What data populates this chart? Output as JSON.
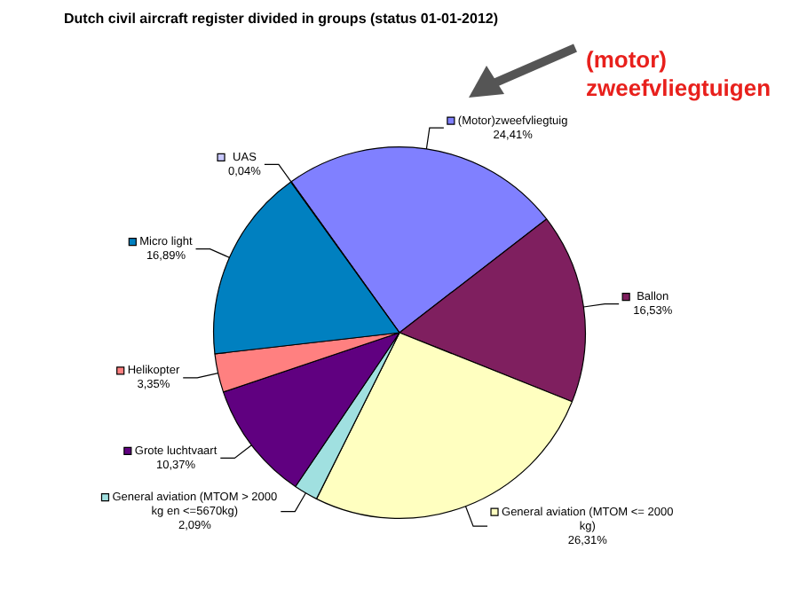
{
  "chart_data": {
    "type": "pie",
    "title": "Dutch civil aircraft register divided in groups (status 01-01-2012)",
    "categories": [
      "(Motor)zweefvliegtuig",
      "Ballon",
      "General aviation (MTOM <= 2000 kg)",
      "General aviation (MTOM > 2000 kg en <=5670kg)",
      "Grote luchtvaart",
      "Helikopter",
      "Micro light",
      "UAS"
    ],
    "values": [
      24.41,
      16.53,
      26.31,
      2.09,
      10.37,
      3.35,
      16.89,
      0.04
    ],
    "value_labels": [
      "24,41%",
      "16,53%",
      "26,31%",
      "2,09%",
      "10,37%",
      "3,35%",
      "16,89%",
      "0,04%"
    ],
    "colors": [
      "#8080ff",
      "#7f1f5f",
      "#ffffc0",
      "#a0e0e0",
      "#600080",
      "#ff8080",
      "#0080c0",
      "#c8c8ff"
    ],
    "annotations": [
      "(motor) zweefvliegtuigen"
    ],
    "legend": true
  }
}
